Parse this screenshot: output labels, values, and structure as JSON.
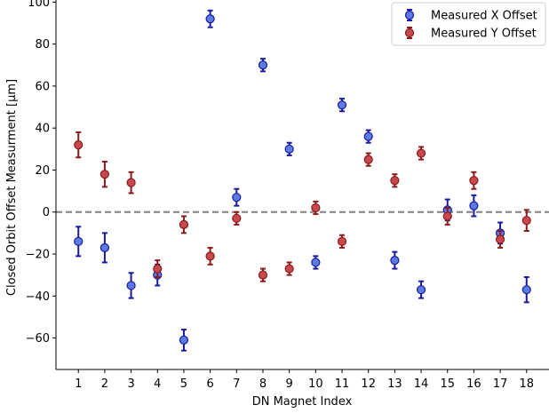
{
  "chart_data": {
    "type": "scatter",
    "xlabel": "DN Magnet Index",
    "ylabel": "Closed Orbit Offset Measurment [μm]",
    "xlim": [
      0.15,
      18.85
    ],
    "ylim": [
      -75,
      101
    ],
    "x": [
      1,
      2,
      3,
      4,
      5,
      6,
      7,
      8,
      9,
      10,
      11,
      12,
      13,
      14,
      15,
      16,
      17,
      18
    ],
    "x_tick_labels": [
      "1",
      "2",
      "3",
      "4",
      "5",
      "6",
      "7",
      "8",
      "9",
      "10",
      "11",
      "12",
      "13",
      "14",
      "15",
      "16",
      "17",
      "18"
    ],
    "y_ticks": [
      -60,
      -40,
      -20,
      0,
      20,
      40,
      60,
      80,
      100
    ],
    "y_tick_labels": [
      "−60",
      "−40",
      "−20",
      "0",
      "20",
      "40",
      "60",
      "80",
      "100"
    ],
    "reference_line": {
      "y": 0,
      "style": "dashed",
      "color": "#808080"
    },
    "legend_position": "top-right",
    "series": [
      {
        "name": "Measured X Offset",
        "face_color": "#5b7be3",
        "edge_color": "#1a1a9e",
        "values": [
          -14,
          -17,
          -35,
          -30,
          -61,
          92,
          7,
          70,
          30,
          -24,
          51,
          36,
          -23,
          -37,
          1,
          3,
          -10,
          -37
        ],
        "errors": [
          7,
          7,
          6,
          5,
          5,
          4,
          4,
          3,
          3,
          3,
          3,
          3,
          4,
          4,
          5,
          5,
          5,
          6
        ]
      },
      {
        "name": "Measured Y Offset",
        "face_color": "#c8494d",
        "edge_color": "#8b1a1a",
        "values": [
          32,
          18,
          14,
          -27,
          -6,
          -21,
          -3,
          -30,
          -27,
          2,
          -14,
          25,
          15,
          28,
          -2,
          15,
          -13,
          -4
        ],
        "errors": [
          6,
          6,
          5,
          4,
          4,
          4,
          3,
          3,
          3,
          3,
          3,
          3,
          3,
          3,
          4,
          4,
          4,
          5
        ]
      }
    ]
  }
}
